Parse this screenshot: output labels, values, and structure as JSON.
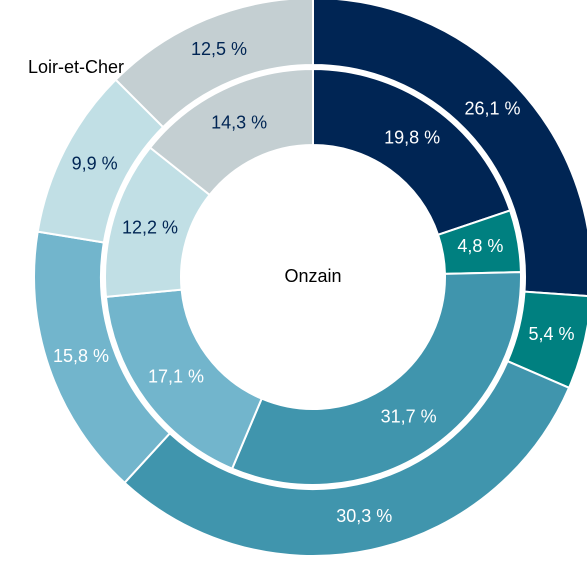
{
  "chart_data": {
    "type": "donut",
    "colors": [
      "#002554",
      "#008080",
      "#4095ad",
      "#72b5cc",
      "#c1dfe5",
      "#c4cfd2"
    ],
    "text_colors": [
      "#ffffff",
      "#ffffff",
      "#ffffff",
      "#ffffff",
      "#002554",
      "#002554"
    ],
    "series": [
      {
        "name": "Loir-et-Cher",
        "values": [
          26.1,
          5.4,
          30.3,
          15.8,
          9.9,
          12.5
        ],
        "value_labels": [
          "26,1 %",
          "5,4 %",
          "30,3 %",
          "15,8 %",
          "9,9 %",
          "12,5 %"
        ]
      },
      {
        "name": "Onzain",
        "values": [
          19.8,
          4.8,
          31.7,
          17.1,
          12.2,
          14.3
        ],
        "value_labels": [
          "19,8 %",
          "4,8 %",
          "31,7 %",
          "17,1 %",
          "12,2 %",
          "14,3 %"
        ]
      }
    ]
  }
}
